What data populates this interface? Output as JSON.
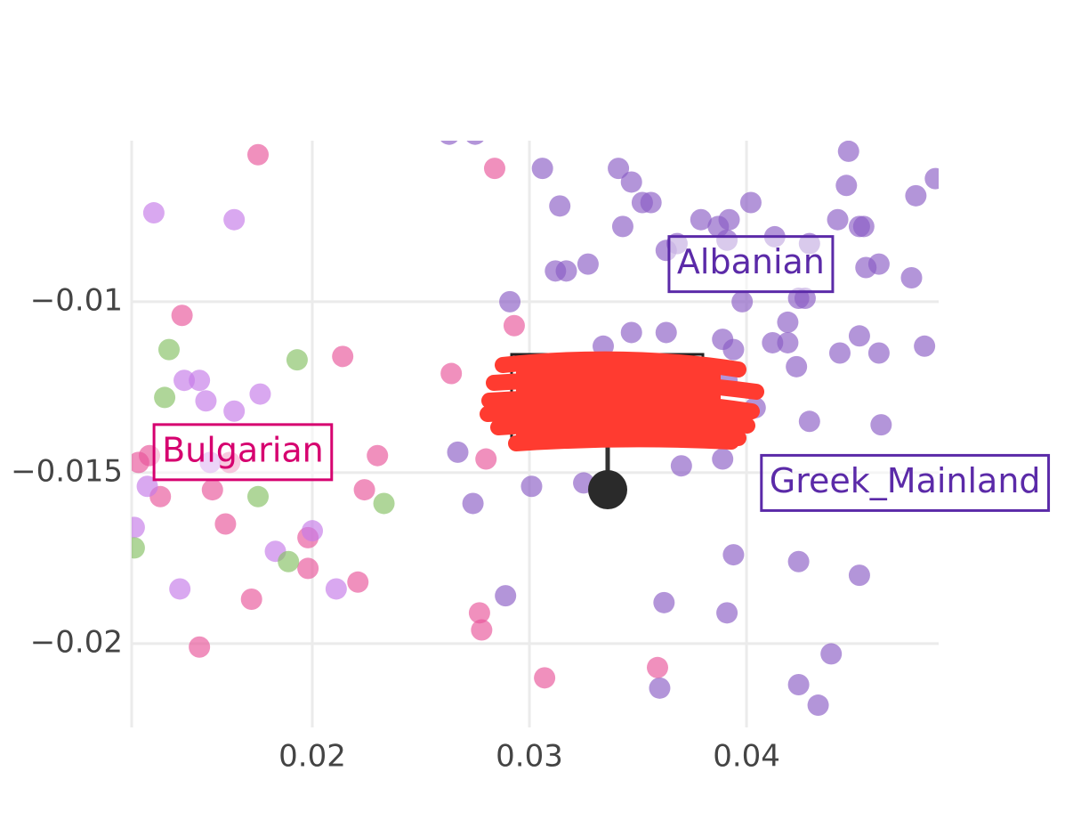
{
  "chart_data": {
    "type": "scatter",
    "xlim": [
      0.01168,
      0.04885
    ],
    "ylim": [
      -0.02245,
      -0.00529
    ],
    "xticks": [
      0.02,
      0.03,
      0.04
    ],
    "yticks": [
      {
        "value": -0.01,
        "label": "−0.01"
      },
      {
        "value": -0.015,
        "label": "−0.015"
      },
      {
        "value": -0.02,
        "label": "−0.02"
      }
    ],
    "grid": true,
    "series": [
      {
        "color": "#8a5cc4",
        "x": [
          0.0263,
          0.0275,
          0.0306,
          0.0314,
          0.0341,
          0.0347,
          0.0352,
          0.0356,
          0.0343,
          0.0379,
          0.0387,
          0.0392,
          0.0402,
          0.0413,
          0.0429,
          0.0447,
          0.0446,
          0.0442,
          0.0452,
          0.0454,
          0.0478,
          0.0487,
          0.0363,
          0.0368,
          0.0391,
          0.0312,
          0.0317,
          0.0327,
          0.0291,
          0.0398,
          0.0424,
          0.0427,
          0.0455,
          0.0461,
          0.0476,
          0.0419,
          0.0412,
          0.0419,
          0.0423,
          0.0443,
          0.0452,
          0.0461,
          0.0482,
          0.0334,
          0.0347,
          0.0363,
          0.0389,
          0.0394,
          0.0391,
          0.0404,
          0.0429,
          0.0462,
          0.0267,
          0.0274,
          0.0301,
          0.0325,
          0.037,
          0.0389,
          0.0394,
          0.0424,
          0.0452,
          0.0362,
          0.0391,
          0.0289,
          0.036,
          0.0424,
          0.0433,
          0.0439
        ],
        "values": [
          -0.0051,
          -0.0051,
          -0.0061,
          -0.0072,
          -0.0061,
          -0.0065,
          -0.0071,
          -0.0071,
          -0.0078,
          -0.0076,
          -0.0078,
          -0.0076,
          -0.0071,
          -0.0081,
          -0.0083,
          -0.0056,
          -0.0066,
          -0.0076,
          -0.0078,
          -0.0078,
          -0.0069,
          -0.0064,
          -0.0085,
          -0.0083,
          -0.0082,
          -0.0091,
          -0.0091,
          -0.0089,
          -0.01,
          -0.01,
          -0.0099,
          -0.0099,
          -0.009,
          -0.0089,
          -0.0093,
          -0.0106,
          -0.0112,
          -0.0112,
          -0.0119,
          -0.0115,
          -0.011,
          -0.0115,
          -0.0113,
          -0.0113,
          -0.0109,
          -0.0109,
          -0.0111,
          -0.0114,
          -0.0123,
          -0.0131,
          -0.0135,
          -0.0136,
          -0.0144,
          -0.0159,
          -0.0154,
          -0.0153,
          -0.0148,
          -0.0146,
          -0.0174,
          -0.0176,
          -0.018,
          -0.0188,
          -0.0191,
          -0.0186,
          -0.0213,
          -0.0212,
          -0.0218,
          -0.0203
        ]
      },
      {
        "color": "#e8559a",
        "x": [
          0.0175,
          0.0284,
          0.014,
          0.0214,
          0.0264,
          0.0293,
          0.028,
          0.023,
          0.012,
          0.0125,
          0.013,
          0.0154,
          0.016,
          0.0198,
          0.0198,
          0.0172,
          0.0221,
          0.0224,
          0.0277,
          0.0278,
          0.0148,
          0.0307,
          0.0359,
          0.0162
        ],
        "values": [
          -0.0057,
          -0.0061,
          -0.0104,
          -0.0116,
          -0.0121,
          -0.0107,
          -0.0146,
          -0.0145,
          -0.0147,
          -0.0145,
          -0.0157,
          -0.0155,
          -0.0165,
          -0.0169,
          -0.0178,
          -0.0187,
          -0.0182,
          -0.0155,
          -0.0191,
          -0.0196,
          -0.0201,
          -0.021,
          -0.0207,
          -0.0147
        ]
      },
      {
        "color": "#c479e8",
        "x": [
          0.0127,
          0.0164,
          0.0141,
          0.0148,
          0.0151,
          0.0164,
          0.0176,
          0.0124,
          0.0118,
          0.02,
          0.0183,
          0.0211,
          0.0139,
          0.0153
        ],
        "values": [
          -0.0074,
          -0.0076,
          -0.0123,
          -0.0123,
          -0.0129,
          -0.0132,
          -0.0127,
          -0.0154,
          -0.0166,
          -0.0167,
          -0.0173,
          -0.0184,
          -0.0184,
          -0.0147
        ]
      },
      {
        "color": "#84c063",
        "x": [
          0.0134,
          0.0132,
          0.0193,
          0.0175,
          0.0233,
          0.0189,
          0.0118
        ],
        "values": [
          -0.0114,
          -0.0128,
          -0.0117,
          -0.0157,
          -0.0159,
          -0.0176,
          -0.0172
        ]
      }
    ],
    "annotations": [
      {
        "text": "Albanian",
        "x": 0.0402,
        "y": -0.0089,
        "color": "#5b2aa8"
      },
      {
        "text": "Bulgarian",
        "x": 0.0168,
        "y": -0.0144,
        "color": "#d6006f"
      },
      {
        "text": "Greek_Mainland",
        "x": 0.0473,
        "y": -0.0153,
        "color": "#5b2aa8"
      }
    ]
  }
}
